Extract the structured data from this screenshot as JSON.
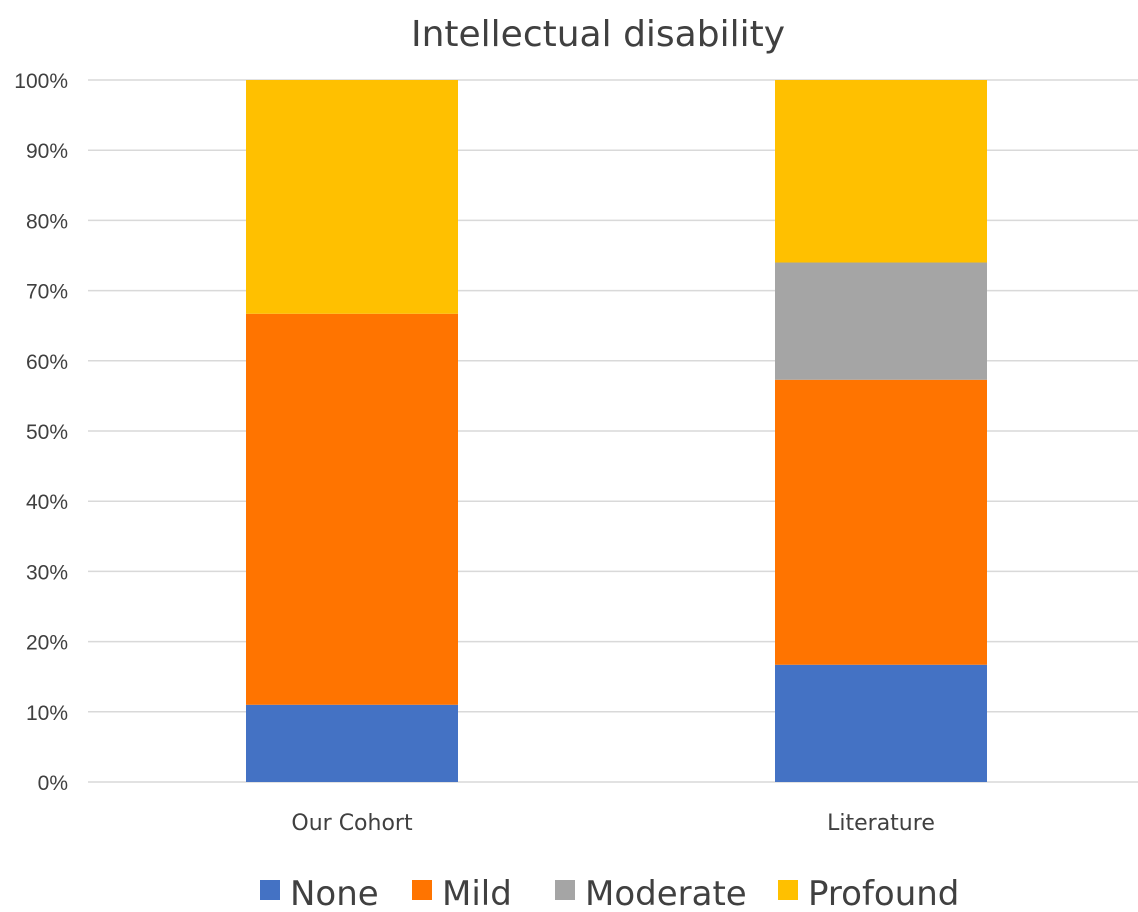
{
  "chart_data": {
    "type": "bar",
    "stacked": true,
    "percent_stacked": true,
    "title": "Intellectual disability",
    "categories": [
      "Our Cohort",
      "Literature"
    ],
    "series": [
      {
        "name": "None",
        "color": "#4472C4",
        "values": [
          11,
          16.7
        ]
      },
      {
        "name": "Mild",
        "color": "#FF7400",
        "values": [
          55.7,
          40.6
        ]
      },
      {
        "name": "Moderate",
        "color": "#A5A5A5",
        "values": [
          0,
          16.7
        ]
      },
      {
        "name": "Profound",
        "color": "#FFC000",
        "values": [
          33.3,
          26
        ]
      }
    ],
    "ylim": [
      0,
      100
    ],
    "yticks": [
      "0%",
      "10%",
      "20%",
      "30%",
      "40%",
      "50%",
      "60%",
      "70%",
      "80%",
      "90%",
      "100%"
    ],
    "grid": true,
    "legend_position": "bottom"
  }
}
